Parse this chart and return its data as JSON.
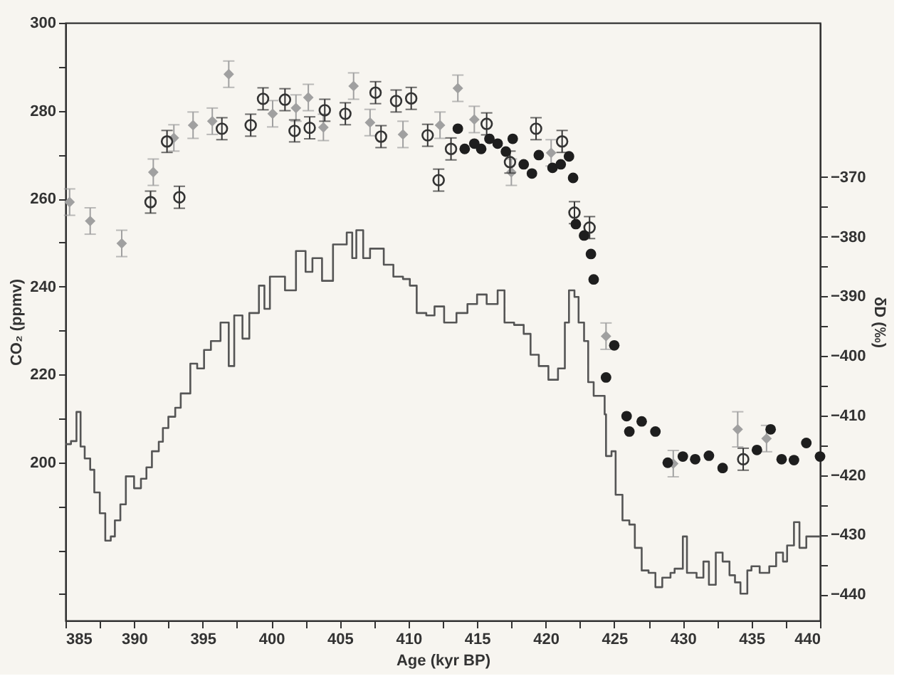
{
  "chart_data": {
    "type": "scatter",
    "xlabel": "Age (kyr BP)",
    "ylabel": "CO₂ (ppmv)",
    "y2label": "δD (‰)",
    "xlim": [
      385,
      440
    ],
    "ylim": [
      164,
      300
    ],
    "y2lim": [
      -444.4,
      -344.1
    ],
    "xticks": [
      385,
      {
        "value": 387.5,
        "label": null
      },
      390,
      {
        "value": 392.5,
        "label": null
      },
      395,
      {
        "value": 397.5,
        "label": null
      },
      400,
      {
        "value": 402.5,
        "label": null
      },
      405,
      {
        "value": 407.5,
        "label": null
      },
      410,
      {
        "value": 412.5,
        "label": null
      },
      415,
      {
        "value": 417.5,
        "label": null
      },
      420,
      {
        "value": 422.5,
        "label": null
      },
      425,
      {
        "value": 427.5,
        "label": null
      },
      430,
      {
        "value": 432.5,
        "label": null
      },
      435,
      {
        "value": 437.5,
        "label": null
      },
      440
    ],
    "yticks": [
      {
        "value": 170,
        "label": null
      },
      {
        "value": 180,
        "label": null
      },
      {
        "value": 190,
        "label": null
      },
      200,
      {
        "value": 210,
        "label": null
      },
      220,
      {
        "value": 230,
        "label": null
      },
      240,
      {
        "value": 250,
        "label": null
      },
      260,
      {
        "value": 270,
        "label": null
      },
      280,
      {
        "value": 290,
        "label": null
      },
      300
    ],
    "y2ticks": [
      -440,
      {
        "value": -435,
        "label": null
      },
      -430,
      {
        "value": -425,
        "label": null
      },
      -420,
      {
        "value": -415,
        "label": null
      },
      -410,
      {
        "value": -405,
        "label": null
      },
      -400,
      {
        "value": -395,
        "label": null
      },
      -390,
      {
        "value": -385,
        "label": null
      },
      -380,
      {
        "value": -375,
        "label": null
      },
      -370
    ],
    "grid": false,
    "series": [
      {
        "type": "step",
        "axis": "y2",
        "color": "#555555",
        "marker": "none",
        "line_style": "solid",
        "x": [
          385.0,
          385.4,
          385.8,
          386.1,
          386.4,
          386.8,
          387.1,
          387.5,
          387.9,
          388.3,
          388.6,
          389.0,
          389.4,
          390.0,
          390.5,
          390.9,
          391.3,
          391.8,
          392.1,
          392.5,
          393.0,
          393.4,
          394.1,
          394.6,
          395.1,
          395.6,
          396.3,
          396.9,
          397.3,
          397.9,
          398.4,
          399.1,
          399.5,
          399.9,
          401.0,
          401.8,
          402.5,
          403.0,
          403.7,
          404.5,
          404.9,
          405.5,
          405.9,
          406.2,
          406.7,
          407.2,
          408.2,
          408.9,
          409.6,
          410.1,
          410.6,
          411.3,
          411.9,
          412.6,
          413.5,
          414.3,
          415.0,
          415.7,
          416.5,
          417.0,
          417.7,
          418.4,
          418.9,
          419.5,
          420.2,
          420.9,
          421.4,
          421.7,
          422.1,
          422.4,
          422.8,
          423.1,
          423.5,
          423.8,
          424.3,
          424.4,
          424.8,
          425.1,
          425.6,
          426.1,
          426.5,
          427.0,
          427.5,
          428.0,
          428.5,
          429.1,
          429.4,
          430.0,
          430.3,
          431.0,
          431.5,
          431.9,
          432.4,
          432.9,
          433.4,
          433.8,
          434.2,
          434.7,
          435.0,
          435.6,
          436.3,
          436.8,
          437.3,
          437.6,
          438.1,
          438.5,
          439.0,
          440.0
        ],
        "values": [
          -414.8,
          -414.3,
          -409.4,
          -415.2,
          -417.2,
          -419.1,
          -422.9,
          -426.4,
          -431.0,
          -430.3,
          -427.6,
          -424.9,
          -420.2,
          -422.2,
          -420.6,
          -418.7,
          -416.0,
          -414.4,
          -412.1,
          -410.2,
          -408.7,
          -406.3,
          -401.3,
          -402.1,
          -399.0,
          -397.5,
          -394.4,
          -401.7,
          -393.2,
          -397.1,
          -392.8,
          -388.2,
          -392.1,
          -386.7,
          -389.0,
          -382.4,
          -385.9,
          -383.6,
          -387.4,
          -381.3,
          -381.3,
          -379.3,
          -383.6,
          -378.9,
          -383.6,
          -382.0,
          -384.7,
          -386.7,
          -387.1,
          -388.2,
          -392.8,
          -393.2,
          -391.7,
          -394.4,
          -392.8,
          -391.3,
          -389.7,
          -391.3,
          -389.0,
          -394.4,
          -394.8,
          -396.3,
          -399.8,
          -401.7,
          -404.0,
          -402.1,
          -394.4,
          -389.0,
          -390.1,
          -394.4,
          -397.5,
          -404.4,
          -406.7,
          -406.7,
          -409.8,
          -416.8,
          -416.0,
          -423.3,
          -427.6,
          -428.3,
          -432.2,
          -436.0,
          -436.4,
          -438.8,
          -437.2,
          -436.4,
          -435.7,
          -430.3,
          -436.4,
          -437.2,
          -434.5,
          -438.4,
          -433.0,
          -434.5,
          -436.8,
          -438.0,
          -439.9,
          -436.0,
          -435.3,
          -436.4,
          -435.3,
          -433.0,
          -434.5,
          -431.8,
          -427.9,
          -432.2,
          -430.3,
          -430.3
        ]
      },
      {
        "marker": "diamond",
        "color": "#a0a0a0",
        "x": [
          385.3,
          386.8,
          389.1,
          391.4,
          392.9,
          394.3,
          395.7,
          396.9,
          400.1,
          401.8,
          402.7,
          403.8,
          406.0,
          407.2,
          409.6,
          412.3,
          413.6,
          414.8,
          417.5,
          420.4,
          424.4,
          429.3,
          434.0,
          436.1
        ],
        "values": [
          259.2,
          254.9,
          249.8,
          266.0,
          273.8,
          276.7,
          277.6,
          288.3,
          279.3,
          280.6,
          283.0,
          276.2,
          285.6,
          277.3,
          274.6,
          276.7,
          285.1,
          278.0,
          266.0,
          270.4,
          228.7,
          199.7,
          207.5,
          205.4
        ],
        "errors": [
          3,
          3,
          3,
          3,
          3,
          3,
          3,
          3,
          3,
          3,
          3,
          3,
          3,
          3,
          3,
          3,
          3,
          3,
          3,
          3,
          3,
          3,
          4,
          3
        ]
      },
      {
        "marker": "circle",
        "color": "#333333",
        "x": [
          391.2,
          392.4,
          393.3,
          396.4,
          398.5,
          399.4,
          401.0,
          401.7,
          402.8,
          403.9,
          405.4,
          407.6,
          408.0,
          409.1,
          410.2,
          411.4,
          412.2,
          413.1,
          415.7,
          417.4,
          419.3,
          421.2,
          422.1,
          423.2,
          434.4
        ],
        "values": [
          259.2,
          273.0,
          260.3,
          275.9,
          276.7,
          282.7,
          282.5,
          275.4,
          276.1,
          280.1,
          279.3,
          284.1,
          274.1,
          282.2,
          282.8,
          274.4,
          264.2,
          271.3,
          277.0,
          268.3,
          275.9,
          273.0,
          256.8,
          253.4,
          200.7
        ],
        "errors": [
          2.5,
          2.5,
          2.5,
          2.5,
          2.5,
          2.5,
          2.5,
          2.5,
          2.5,
          2.5,
          2.5,
          2.5,
          2.5,
          2.5,
          2.5,
          2.5,
          2.5,
          2.5,
          2.5,
          2.5,
          2.5,
          2.5,
          2.5,
          2.5,
          2.5
        ]
      },
      {
        "marker": "circle",
        "color": "#1e1e1e",
        "x": [
          413.6,
          414.1,
          414.8,
          415.3,
          415.9,
          416.5,
          417.1,
          417.6,
          418.4,
          419.0,
          419.5,
          420.5,
          421.1,
          421.7,
          422.0,
          422.2,
          422.8,
          423.3,
          423.5,
          424.4,
          425.0,
          425.9,
          426.1,
          427.0,
          428.0,
          428.9,
          430.0,
          430.9,
          431.9,
          432.9,
          435.4,
          436.4,
          437.2,
          438.1,
          439.0,
          440.0
        ],
        "values": [
          275.9,
          271.3,
          272.5,
          271.3,
          273.6,
          272.5,
          270.7,
          273.6,
          267.8,
          265.7,
          269.9,
          267.0,
          267.8,
          269.6,
          264.7,
          254.2,
          251.6,
          247.4,
          241.6,
          219.3,
          226.6,
          210.5,
          207.0,
          209.3,
          207.0,
          199.9,
          201.3,
          200.7,
          201.5,
          198.7,
          202.8,
          207.5,
          200.7,
          200.5,
          204.4,
          201.3
        ]
      }
    ]
  }
}
